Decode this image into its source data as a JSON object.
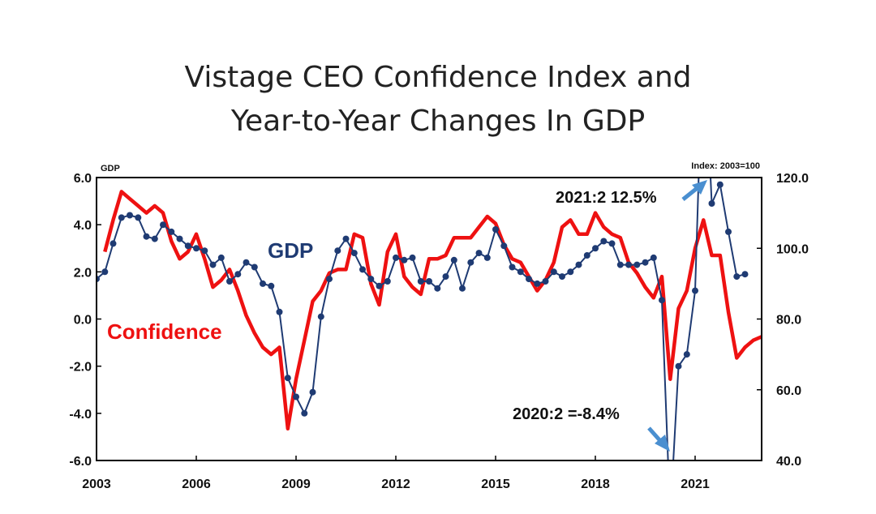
{
  "chart_data": {
    "type": "line",
    "title": [
      "Vistage CEO Confidence Index and",
      "Year-to-Year Changes In GDP"
    ],
    "left_axis_label": "GDP",
    "right_axis_label": "Index: 2003=100",
    "left_ylim": [
      -6.0,
      6.0
    ],
    "right_ylim": [
      40.0,
      120.0
    ],
    "xlim": [
      2003,
      2023
    ],
    "left_ticks": [
      "6.0",
      "4.0",
      "2.0",
      "0.0",
      "-2.0",
      "-4.0",
      "-6.0"
    ],
    "right_ticks": [
      "120.0",
      "100.0",
      "80.0",
      "60.0",
      "40.0"
    ],
    "x_ticks": [
      "2003",
      "2006",
      "2009",
      "2012",
      "2015",
      "2018",
      "2021"
    ],
    "grid": false,
    "legend": "inline labels",
    "colors": {
      "gdp": "#1f3b73",
      "confidence": "#ee1111",
      "arrow": "#4a8fd0"
    },
    "series": [
      {
        "name": "GDP",
        "axis": "left",
        "style": "line-with-markers",
        "x": [
          2003.0,
          2003.25,
          2003.5,
          2003.75,
          2004.0,
          2004.25,
          2004.5,
          2004.75,
          2005.0,
          2005.25,
          2005.5,
          2005.75,
          2006.0,
          2006.25,
          2006.5,
          2006.75,
          2007.0,
          2007.25,
          2007.5,
          2007.75,
          2008.0,
          2008.25,
          2008.5,
          2008.75,
          2009.0,
          2009.25,
          2009.5,
          2009.75,
          2010.0,
          2010.25,
          2010.5,
          2010.75,
          2011.0,
          2011.25,
          2011.5,
          2011.75,
          2012.0,
          2012.25,
          2012.5,
          2012.75,
          2013.0,
          2013.25,
          2013.5,
          2013.75,
          2014.0,
          2014.25,
          2014.5,
          2014.75,
          2015.0,
          2015.25,
          2015.5,
          2015.75,
          2016.0,
          2016.25,
          2016.5,
          2016.75,
          2017.0,
          2017.25,
          2017.5,
          2017.75,
          2018.0,
          2018.25,
          2018.5,
          2018.75,
          2019.0,
          2019.25,
          2019.5,
          2019.75,
          2020.0,
          2020.25,
          2020.5,
          2020.75,
          2021.0,
          2021.25,
          2021.5,
          2021.75,
          2022.0,
          2022.25,
          2022.5
        ],
        "values": [
          1.7,
          2.0,
          3.2,
          4.3,
          4.4,
          4.3,
          3.5,
          3.4,
          4.0,
          3.7,
          3.4,
          3.1,
          3.0,
          2.9,
          2.3,
          2.6,
          1.6,
          1.9,
          2.4,
          2.2,
          1.5,
          1.4,
          0.3,
          -2.5,
          -3.3,
          -4.0,
          -3.1,
          0.1,
          1.7,
          2.9,
          3.4,
          2.8,
          2.1,
          1.7,
          1.4,
          1.6,
          2.6,
          2.5,
          2.6,
          1.6,
          1.6,
          1.3,
          1.8,
          2.5,
          1.3,
          2.4,
          2.8,
          2.6,
          3.8,
          3.1,
          2.2,
          2.0,
          1.7,
          1.5,
          1.6,
          2.0,
          1.8,
          2.0,
          2.3,
          2.7,
          3.0,
          3.3,
          3.2,
          2.3,
          2.3,
          2.3,
          2.4,
          2.6,
          0.8,
          -8.4,
          -2.0,
          -1.5,
          1.2,
          12.5,
          4.9,
          5.7,
          3.7,
          1.8,
          1.9
        ]
      },
      {
        "name": "Confidence",
        "axis": "right",
        "style": "line",
        "x": [
          2003.25,
          2003.5,
          2003.75,
          2004.0,
          2004.25,
          2004.5,
          2004.75,
          2005.0,
          2005.25,
          2005.5,
          2005.75,
          2006.0,
          2006.25,
          2006.5,
          2006.75,
          2007.0,
          2007.25,
          2007.5,
          2007.75,
          2008.0,
          2008.25,
          2008.5,
          2008.75,
          2009.0,
          2009.25,
          2009.5,
          2009.75,
          2010.0,
          2010.25,
          2010.5,
          2010.75,
          2011.0,
          2011.25,
          2011.5,
          2011.75,
          2012.0,
          2012.25,
          2012.5,
          2012.75,
          2013.0,
          2013.25,
          2013.5,
          2013.75,
          2014.0,
          2014.25,
          2014.5,
          2014.75,
          2015.0,
          2015.25,
          2015.5,
          2015.75,
          2016.0,
          2016.25,
          2016.5,
          2016.75,
          2017.0,
          2017.25,
          2017.5,
          2017.75,
          2018.0,
          2018.25,
          2018.5,
          2018.75,
          2019.0,
          2019.25,
          2019.5,
          2019.75,
          2020.0,
          2020.25,
          2020.5,
          2020.75,
          2021.0,
          2021.25,
          2021.5,
          2021.75,
          2022.0,
          2022.25,
          2022.5,
          2022.75,
          2023.0
        ],
        "values": [
          99.0,
          108.0,
          116.0,
          114.0,
          112.0,
          110.0,
          112.0,
          110.0,
          102.0,
          97.0,
          99.0,
          104.0,
          97.0,
          89.0,
          91.0,
          94.0,
          88.0,
          81.0,
          76.0,
          72.0,
          70.0,
          72.0,
          49.0,
          63.0,
          74.0,
          85.0,
          88.0,
          93.0,
          94.0,
          94.0,
          104.0,
          103.0,
          90.0,
          84.0,
          99.0,
          104.0,
          92.0,
          89.0,
          87.0,
          97.0,
          97.0,
          98.0,
          103.0,
          103.0,
          103.0,
          106.0,
          109.0,
          107.0,
          101.0,
          97.0,
          96.0,
          92.0,
          88.0,
          91.0,
          96.0,
          106.0,
          108.0,
          104.0,
          104.0,
          110.0,
          106.0,
          104.0,
          103.0,
          96.0,
          93.0,
          89.0,
          86.0,
          92.0,
          63.0,
          83.0,
          88.0,
          100.0,
          108.0,
          98.0,
          98.0,
          82.0,
          69.0,
          72.0,
          74.0,
          75.0
        ]
      }
    ],
    "annotations": [
      {
        "text": "2021:2 12.5%"
      },
      {
        "text": "2020:2 =-8.4%"
      }
    ]
  }
}
